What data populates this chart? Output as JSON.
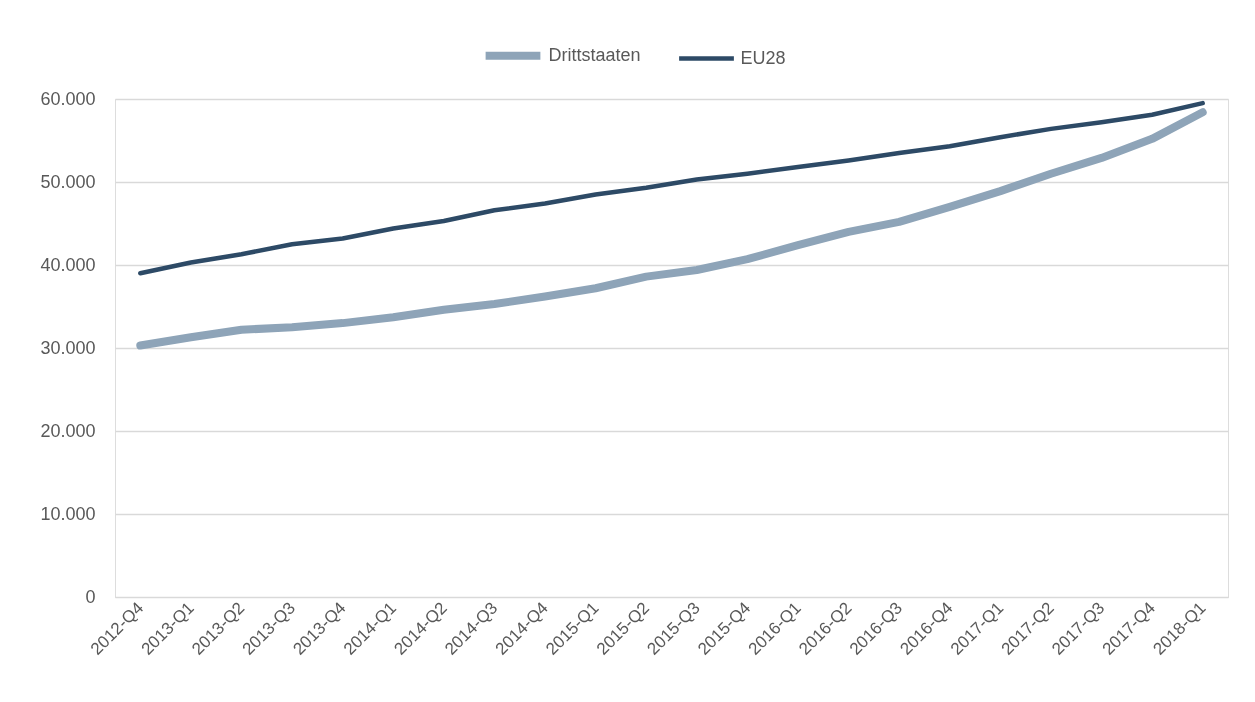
{
  "chart_data": {
    "type": "line",
    "categories": [
      "2012-Q4",
      "2013-Q1",
      "2013-Q2",
      "2013-Q3",
      "2013-Q4",
      "2014-Q1",
      "2014-Q2",
      "2014-Q3",
      "2014-Q4",
      "2015-Q1",
      "2015-Q2",
      "2015-Q3",
      "2015-Q4",
      "2016-Q1",
      "2016-Q2",
      "2016-Q3",
      "2016-Q4",
      "2017-Q1",
      "2017-Q2",
      "2017-Q3",
      "2017-Q4",
      "2018-Q1"
    ],
    "series": [
      {
        "name": "Drittstaaten",
        "color": "#8ea4b8",
        "values": [
          30300,
          31300,
          32200,
          32500,
          33000,
          33700,
          34600,
          35300,
          36200,
          37200,
          38600,
          39400,
          40700,
          42400,
          44000,
          45200,
          47000,
          48900,
          51000,
          52900,
          55200,
          58400
        ]
      },
      {
        "name": "EU28",
        "color": "#2d4a66",
        "values": [
          39000,
          40300,
          41300,
          42500,
          43200,
          44400,
          45300,
          46600,
          47400,
          48500,
          49300,
          50300,
          51000,
          51800,
          52600,
          53500,
          54300,
          55400,
          56400,
          57200,
          58100,
          59500
        ]
      }
    ],
    "ylim": [
      0,
      60000
    ],
    "yticks": [
      0,
      {
        "value": 10000,
        "label": "10.000"
      },
      {
        "value": 20000,
        "label": "20.000"
      },
      {
        "value": 30000,
        "label": "30.000"
      },
      {
        "value": 40000,
        "label": "40.000"
      },
      {
        "value": 50000,
        "label": "50.000"
      },
      {
        "value": 60000,
        "label": "60.000"
      }
    ],
    "grid": "y",
    "legend": "top",
    "line_style": "solid"
  }
}
